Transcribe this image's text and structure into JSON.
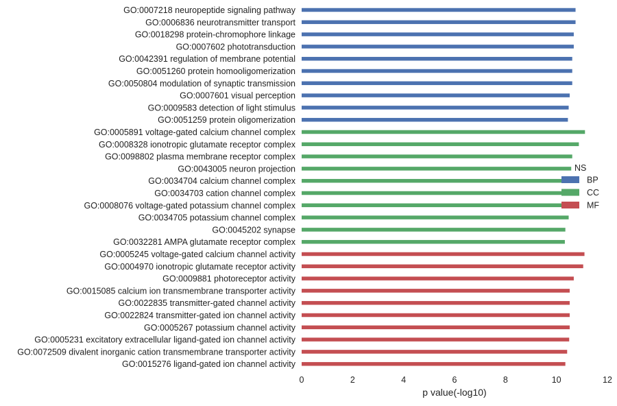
{
  "chart_data": {
    "type": "bar",
    "orientation": "horizontal",
    "xlabel": "p value(-log10)",
    "ylabel": "",
    "xlim": [
      0,
      12
    ],
    "xticks": [
      0,
      2,
      4,
      6,
      8,
      10,
      12
    ],
    "grid": false,
    "legend": {
      "title": "NS",
      "placement": "right",
      "entries": [
        {
          "name": "BP",
          "color": "#4c72b0"
        },
        {
          "name": "CC",
          "color": "#55a868"
        },
        {
          "name": "MF",
          "color": "#c44e52"
        }
      ]
    },
    "categories": [
      {
        "label": "GO:0007218 neuropeptide signaling pathway",
        "value": 10.75,
        "group": "BP"
      },
      {
        "label": "GO:0006836 neurotransmitter transport",
        "value": 10.75,
        "group": "BP"
      },
      {
        "label": "GO:0018298 protein-chromophore linkage",
        "value": 10.68,
        "group": "BP"
      },
      {
        "label": "GO:0007602 phototransduction",
        "value": 10.68,
        "group": "BP"
      },
      {
        "label": "GO:0042391 regulation of membrane potential",
        "value": 10.62,
        "group": "BP"
      },
      {
        "label": "GO:0051260 protein homooligomerization",
        "value": 10.62,
        "group": "BP"
      },
      {
        "label": "GO:0050804 modulation of synaptic transmission",
        "value": 10.62,
        "group": "BP"
      },
      {
        "label": "GO:0007601 visual perception",
        "value": 10.52,
        "group": "BP"
      },
      {
        "label": "GO:0009583 detection of light stimulus",
        "value": 10.48,
        "group": "BP"
      },
      {
        "label": "GO:0051259 protein oligomerization",
        "value": 10.45,
        "group": "BP"
      },
      {
        "label": "GO:0005891 voltage-gated calcium channel complex",
        "value": 11.12,
        "group": "CC"
      },
      {
        "label": "GO:0008328 ionotropic glutamate receptor complex",
        "value": 10.88,
        "group": "CC"
      },
      {
        "label": "GO:0098802 plasma membrane receptor complex",
        "value": 10.62,
        "group": "CC"
      },
      {
        "label": "GO:0043005 neuron projection",
        "value": 10.58,
        "group": "CC"
      },
      {
        "label": "GO:0034704 calcium channel complex",
        "value": 10.55,
        "group": "CC"
      },
      {
        "label": "GO:0034703 cation channel complex",
        "value": 10.55,
        "group": "CC"
      },
      {
        "label": "GO:0008076 voltage-gated potassium channel complex",
        "value": 10.55,
        "group": "CC"
      },
      {
        "label": "GO:0034705 potassium channel complex",
        "value": 10.48,
        "group": "CC"
      },
      {
        "label": "GO:0045202 synapse",
        "value": 10.35,
        "group": "CC"
      },
      {
        "label": "GO:0032281 AMPA glutamate receptor complex",
        "value": 10.33,
        "group": "CC"
      },
      {
        "label": "GO:0005245 voltage-gated calcium channel activity",
        "value": 11.1,
        "group": "MF"
      },
      {
        "label": "GO:0004970 ionotropic glutamate receptor activity",
        "value": 11.05,
        "group": "MF"
      },
      {
        "label": "GO:0009881 photoreceptor activity",
        "value": 10.68,
        "group": "MF"
      },
      {
        "label": "GO:0015085 calcium ion transmembrane transporter activity",
        "value": 10.52,
        "group": "MF"
      },
      {
        "label": "GO:0022835 transmitter-gated channel activity",
        "value": 10.52,
        "group": "MF"
      },
      {
        "label": "GO:0022824 transmitter-gated ion channel activity",
        "value": 10.52,
        "group": "MF"
      },
      {
        "label": "GO:0005267 potassium channel activity",
        "value": 10.52,
        "group": "MF"
      },
      {
        "label": "GO:0005231 excitatory extracellular ligand-gated ion channel activity",
        "value": 10.5,
        "group": "MF"
      },
      {
        "label": "GO:0072509 divalent inorganic cation transmembrane transporter activity",
        "value": 10.42,
        "group": "MF"
      },
      {
        "label": "GO:0015276 ligand-gated ion channel activity",
        "value": 10.35,
        "group": "MF"
      }
    ]
  }
}
